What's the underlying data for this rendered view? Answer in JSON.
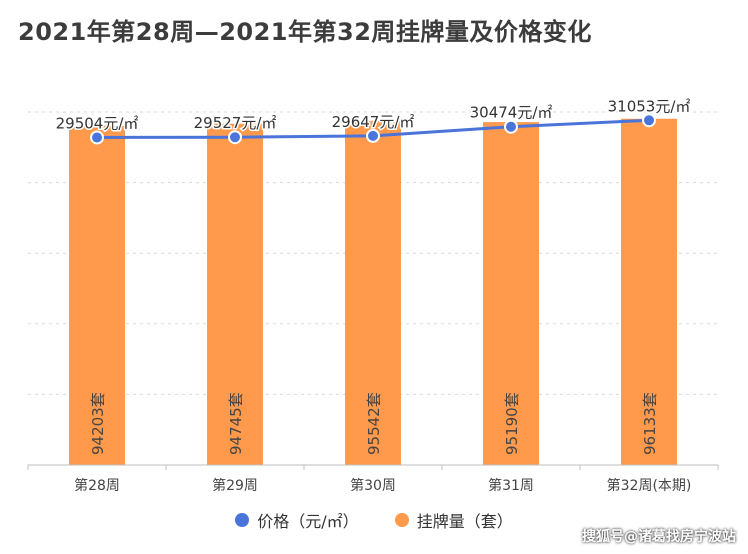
{
  "chart_data": {
    "type": "bar",
    "title": "2021年第28周—2021年第32周挂牌量及价格变化",
    "categories": [
      "第28周",
      "第29周",
      "第30周",
      "第31周",
      "第32周(本期)"
    ],
    "series": [
      {
        "name": "价格（元/㎡）",
        "kind": "line",
        "values": [
          29504,
          29527,
          29647,
          30474,
          31053
        ],
        "labels": [
          "29504元/㎡",
          "29527元/㎡",
          "29647元/㎡",
          "30474元/㎡",
          "31053元/㎡"
        ],
        "color": "#4a74d9"
      },
      {
        "name": "挂牌量（套）",
        "kind": "bar",
        "values": [
          94203,
          94745,
          95542,
          95190,
          96133
        ],
        "labels": [
          "94203套",
          "94745套",
          "95542套",
          "95190套",
          "96133套"
        ],
        "color": "#ff9a4d"
      }
    ],
    "price_axis_range": [
      0,
      31800
    ],
    "listing_axis_range": [
      0,
      98000
    ],
    "grid": true,
    "legend_position": "bottom"
  },
  "watermark": "搜狐号@诸葛找房宁波站"
}
